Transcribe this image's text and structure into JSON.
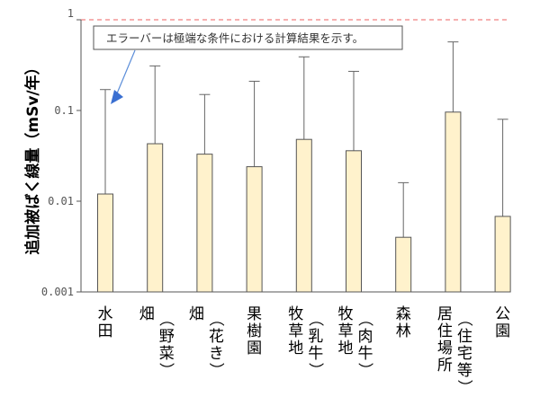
{
  "chart_data": {
    "type": "bar",
    "title": "",
    "xlabel": "",
    "ylabel": "追加被ばく線量（mSv/年）",
    "yscale": "log",
    "ylim": [
      0.001,
      1
    ],
    "yticks": [
      "0.001",
      "0.01",
      "0.1",
      "1"
    ],
    "reference_line": {
      "value": 1,
      "style": "dashed",
      "color": "#f08080"
    },
    "annotation": "エラーバーは極端な条件における計算結果を示す。",
    "categories": [
      "水田",
      "畑（野菜）",
      "畑（花き）",
      "果樹園",
      "牧草地（乳牛）",
      "牧草地（肉牛）",
      "森林",
      "居住場所（住宅等）",
      "公園"
    ],
    "category_lines": [
      [
        "水田"
      ],
      [
        "畑",
        "（野菜）"
      ],
      [
        "畑",
        "（花き）"
      ],
      [
        "果樹園"
      ],
      [
        "牧草地",
        "（乳牛）"
      ],
      [
        "牧草地",
        "（肉牛）"
      ],
      [
        "森林"
      ],
      [
        "居住場所",
        "（住宅等）"
      ],
      [
        "公園"
      ]
    ],
    "values": [
      0.012,
      0.043,
      0.033,
      0.024,
      0.048,
      0.036,
      0.004,
      0.096,
      0.0068
    ],
    "error_upper": [
      0.17,
      0.31,
      0.15,
      0.21,
      0.39,
      0.27,
      0.016,
      0.57,
      0.08
    ],
    "bar_color": "#fff2cc",
    "bar_edge": "#555555",
    "grid": false,
    "legend": null
  }
}
